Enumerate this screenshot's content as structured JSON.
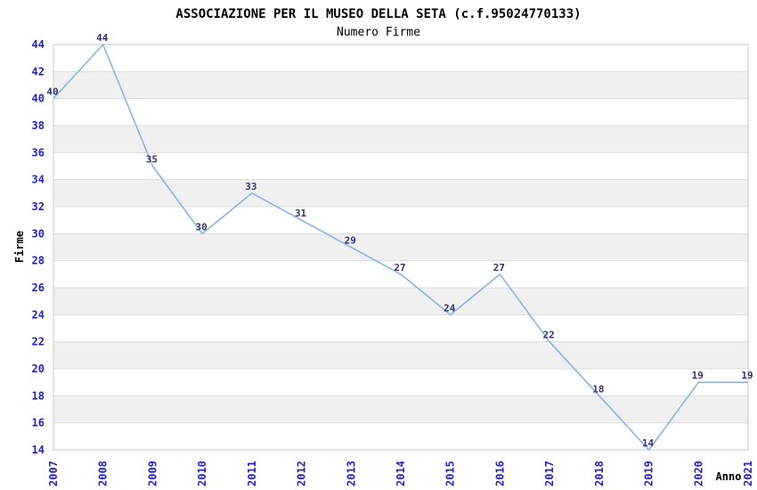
{
  "chart_data": {
    "type": "line",
    "title": "ASSOCIAZIONE PER IL MUSEO DELLA SETA (c.f.95024770133)",
    "subtitle": "Numero Firme",
    "xlabel": "Anno",
    "ylabel": "Firme",
    "categories": [
      "2007",
      "2008",
      "2009",
      "2010",
      "2011",
      "2012",
      "2013",
      "2014",
      "2015",
      "2016",
      "2017",
      "2018",
      "2019",
      "2020",
      "2021"
    ],
    "values": [
      40,
      44,
      35,
      30,
      33,
      31,
      29,
      27,
      24,
      27,
      22,
      18,
      14,
      19,
      19
    ],
    "ylim": [
      14,
      44
    ],
    "ytick_step": 2,
    "grid": "horizontal",
    "alternating_bands": true,
    "legend_position": "none",
    "x_tick_rotation": -90,
    "colors": {
      "line": "#85b6e8",
      "value_label": "#333377",
      "tick_label": "#2222cc",
      "axis_title_color": "#000000",
      "title_color": "#000000",
      "band": "#f0f0f0",
      "gridline": "#dcdcdc",
      "plot_border": "#c8c8c8",
      "background": "#ffffff"
    }
  }
}
